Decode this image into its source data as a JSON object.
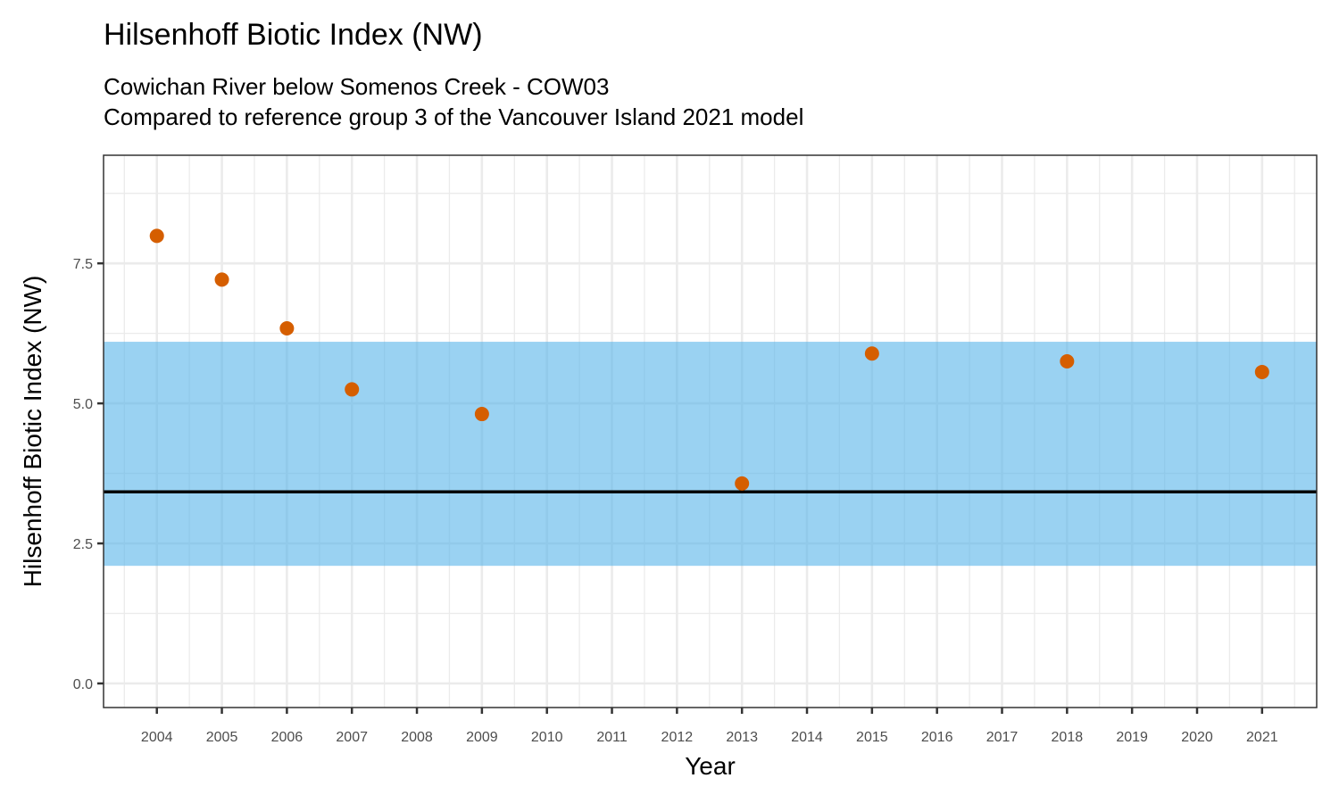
{
  "chart_data": {
    "type": "scatter",
    "title": "Hilsenhoff Biotic Index (NW)",
    "subtitle": [
      "Cowichan River below Somenos Creek - COW03",
      "Compared to reference group 3 of the Vancouver Island 2021 model"
    ],
    "xlabel": "Year",
    "ylabel": "Hilsenhoff Biotic Index (NW)",
    "xlim": [
      2003.18,
      2021.84
    ],
    "ylim": [
      -0.43,
      9.43
    ],
    "x_ticks": [
      2004,
      2005,
      2006,
      2007,
      2008,
      2009,
      2010,
      2011,
      2012,
      2013,
      2014,
      2015,
      2016,
      2017,
      2018,
      2019,
      2020,
      2021
    ],
    "y_ticks": [
      0,
      2.5,
      5,
      7.5
    ],
    "y_tick_labels": [
      "0.0",
      "2.5",
      "5.0",
      "7.5"
    ],
    "grid": true,
    "points": [
      {
        "x": 2004,
        "y": 7.99
      },
      {
        "x": 2005,
        "y": 7.21
      },
      {
        "x": 2006,
        "y": 6.34
      },
      {
        "x": 2007,
        "y": 5.25
      },
      {
        "x": 2009,
        "y": 4.81
      },
      {
        "x": 2013,
        "y": 3.57
      },
      {
        "x": 2015,
        "y": 5.89
      },
      {
        "x": 2018,
        "y": 5.75
      },
      {
        "x": 2021,
        "y": 5.56
      }
    ],
    "reference_band": {
      "low": 2.1,
      "high": 6.1
    },
    "reference_line": 3.42,
    "colors": {
      "point": "#D55E00",
      "band": "#56B4E9",
      "line": "#000000"
    }
  }
}
